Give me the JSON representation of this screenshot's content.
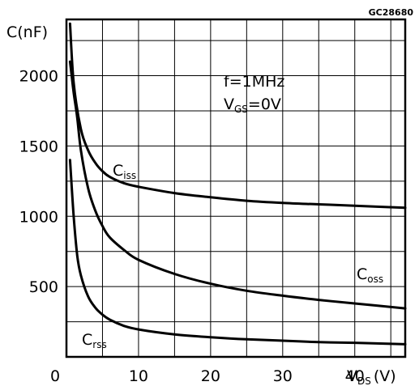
{
  "chart_data": {
    "type": "line",
    "figure_code": "GC28680",
    "y_axis_label": "C(nF)",
    "x_axis_label": {
      "main": "V",
      "sub": "DS",
      "unit": "(V)"
    },
    "xlim": [
      0,
      47
    ],
    "ylim": [
      0,
      2400
    ],
    "x_grid_step": 5,
    "y_grid_step": 250,
    "grid": true,
    "x_ticks": [
      {
        "value": 0,
        "label": "0"
      },
      {
        "value": 10,
        "label": "10"
      },
      {
        "value": 20,
        "label": "20"
      },
      {
        "value": 30,
        "label": "30"
      },
      {
        "value": 40,
        "label": "40"
      }
    ],
    "y_ticks": [
      {
        "value": 500,
        "label": "500"
      },
      {
        "value": 1000,
        "label": "1000"
      },
      {
        "value": 1500,
        "label": "1500"
      },
      {
        "value": 2000,
        "label": "2000"
      }
    ],
    "conditions": [
      {
        "main": "f=1MHz"
      },
      {
        "main": "V",
        "sub": "GS",
        "rest": "=0V"
      }
    ],
    "series": [
      {
        "name": "C",
        "sub": "iss",
        "x": [
          0.5,
          1,
          2,
          3,
          4,
          5,
          6,
          8,
          10,
          15,
          20,
          25,
          30,
          35,
          40,
          47
        ],
        "y": [
          2370,
          1950,
          1620,
          1470,
          1380,
          1320,
          1280,
          1235,
          1210,
          1165,
          1135,
          1110,
          1095,
          1085,
          1075,
          1060
        ]
      },
      {
        "name": "C",
        "sub": "oss",
        "x": [
          0.5,
          1,
          1.5,
          2,
          3,
          4,
          5,
          6,
          8,
          10,
          15,
          20,
          25,
          30,
          35,
          40,
          47
        ],
        "y": [
          2100,
          1880,
          1700,
          1470,
          1200,
          1040,
          930,
          850,
          760,
          690,
          590,
          520,
          470,
          435,
          405,
          380,
          345
        ]
      },
      {
        "name": "C",
        "sub": "rss",
        "x": [
          0.5,
          1,
          1.5,
          2,
          3,
          4,
          5,
          6,
          8,
          10,
          15,
          20,
          25,
          30,
          35,
          40,
          47
        ],
        "y": [
          1400,
          1000,
          720,
          580,
          430,
          350,
          300,
          265,
          220,
          195,
          160,
          140,
          125,
          115,
          105,
          100,
          90
        ]
      }
    ]
  }
}
